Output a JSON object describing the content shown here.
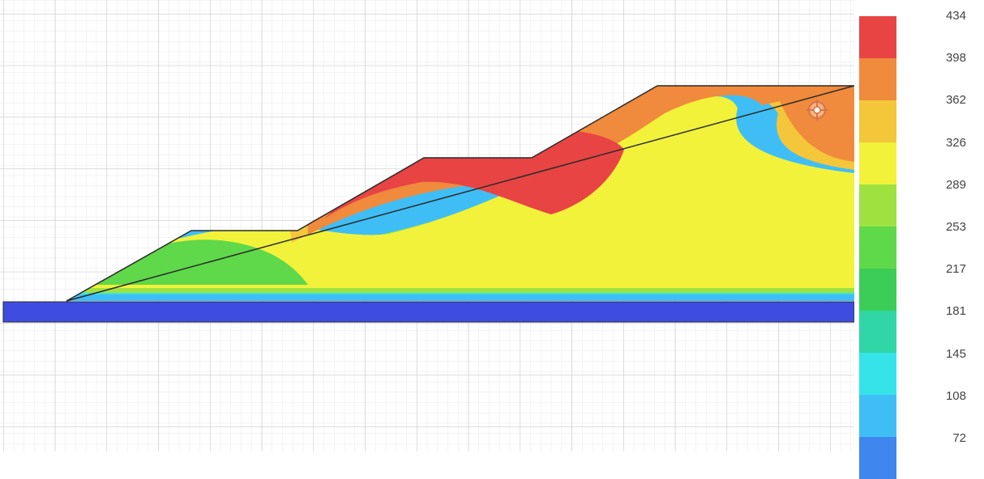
{
  "legend": {
    "labels": [
      "434",
      "398",
      "362",
      "326",
      "289",
      "253",
      "217",
      "181",
      "145",
      "108",
      "72"
    ],
    "colors": [
      "#e84444",
      "#f08a3c",
      "#f4c63a",
      "#f2f23a",
      "#9fe240",
      "#5fd84a",
      "#3ccd58",
      "#30d6a6",
      "#35e3e8",
      "#3fbef5",
      "#3f86ef"
    ]
  },
  "theme": {
    "grid_major": "#c9c9c9",
    "grid_minor": "#e8e8e8",
    "foundation": "#3f4ce0",
    "outline": "#2a2a2a"
  },
  "icons": {
    "crosshair": "crosshair-target-icon"
  }
}
